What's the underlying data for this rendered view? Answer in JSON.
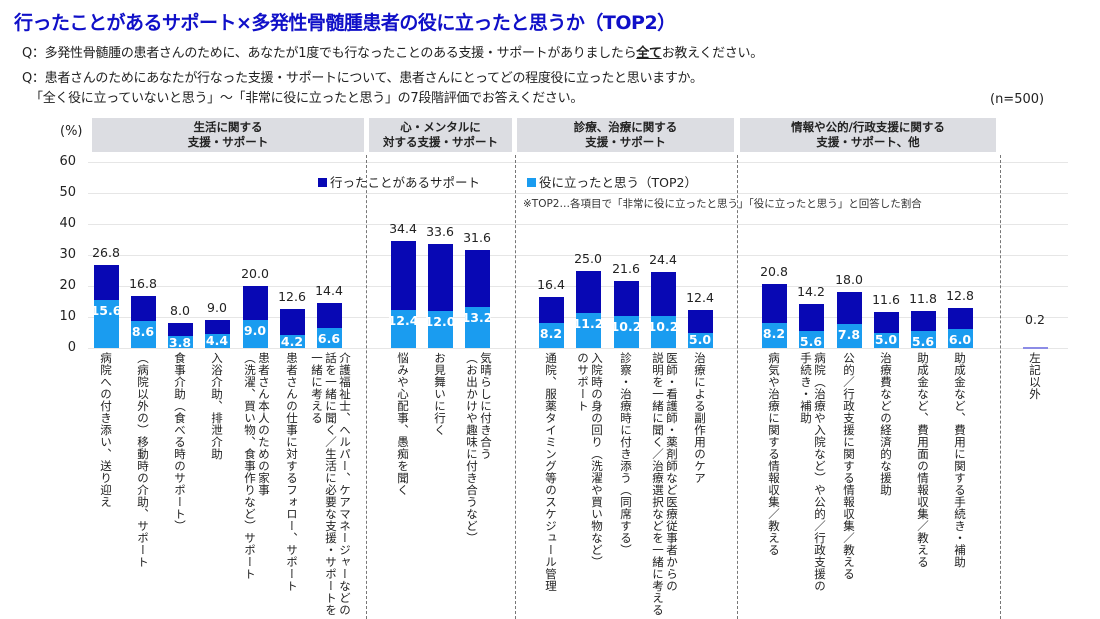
{
  "header": {
    "title": "行ったことがあるサポート×多発性骨髄腫患者の役に立ったと思うか（TOP2）",
    "q1_before": "Q：多発性骨髄腫の患者さんのために、あなたが1度でも行なったことのある支援・サポートがありましたら",
    "q1_emph": "全て",
    "q1_after": "お教えください。",
    "q2": "Q：患者さんのためにあなたが行なった支援・サポートについて、患者さんにとってどの程度役に立ったと思いますか。",
    "q2_line2": "「全く役に立っていないと思う」～「非常に役に立ったと思う」の7段階評価でお答えください。",
    "sample": "(n=500)"
  },
  "chart_data": {
    "type": "bar",
    "stacked_overlay": true,
    "ylabel": "(%)",
    "ylim": [
      0,
      60
    ],
    "yticks": [
      0,
      10,
      20,
      30,
      40,
      50,
      60
    ],
    "grid": true,
    "legend_placement": "top-center",
    "colors": {
      "done": "#0808b4",
      "top2": "#1a9cf0",
      "other": "#8c8ce6"
    },
    "groups": [
      {
        "label": "生活に関する\n支援・サポート",
        "count": 7
      },
      {
        "label": "心・メンタルに\n対する支援・サポート",
        "count": 3
      },
      {
        "label": "診療、治療に関する\n支援・サポート",
        "count": 5
      },
      {
        "label": "情報や公的/行政支援に関する\n支援・サポート、他",
        "count": 6
      }
    ],
    "series": [
      {
        "name": "行ったことがあるサポート",
        "values": [
          26.8,
          16.8,
          8.0,
          9.0,
          20.0,
          12.6,
          14.4,
          34.4,
          33.6,
          31.6,
          16.4,
          25.0,
          21.6,
          24.4,
          12.4,
          20.8,
          14.2,
          18.0,
          11.6,
          11.8,
          12.8,
          0.2
        ]
      },
      {
        "name": "役に立ったと思う（TOP2）",
        "values": [
          15.6,
          8.6,
          3.8,
          4.4,
          9.0,
          4.2,
          6.6,
          12.4,
          12.0,
          13.2,
          8.2,
          11.2,
          10.2,
          10.2,
          5.0,
          8.2,
          5.6,
          7.8,
          5.0,
          5.6,
          6.0,
          null
        ]
      }
    ],
    "categories": [
      "病院への付き添い、送り迎え",
      "（病院以外の）移動時の介助、サポート",
      "食事介助（食べる時のサポート）",
      "入浴介助、排泄介助",
      "患者さん本人のための家事\n（洗濯、買い物、食事作りなど）サポート",
      "患者さんの仕事に対するフォロー、サポート",
      "介護福祉士、ヘルパー、ケアマネージャーなどの\n話を一緒に聞く／生活に必要な支援・サポートを\n一緒に考える",
      "悩みや心配事、愚痴を聞く",
      "お見舞いに行く",
      "気晴らしに付き合う\n（お出かけや趣味に付き合うなど）",
      "通院、服薬タイミング等のスケジュール管理",
      "入院時の身の回り（洗濯や買い物など）\nのサポート",
      "診察・治療時に付き添う（同席する）",
      "医師・看護師・薬剤師など医療従事者からの\n説明を一緒に聞く／治療選択などを一緒に考える",
      "治療による副作用のケア",
      "病気や治療に関する情報収集／教える",
      "病院（治療や入院など）や公的／行政支援の\n手続き・補助",
      "公的／行政支援に関する情報収集／教える",
      "治療費などの経済的な援助",
      "助成金など、費用面の情報収集／教える",
      "助成金など、費用に関する手続き・補助",
      "左記以外"
    ],
    "note": "※TOP2…各項目で「非常に役に立ったと思う」「役に立ったと思う」と回答した割合"
  }
}
